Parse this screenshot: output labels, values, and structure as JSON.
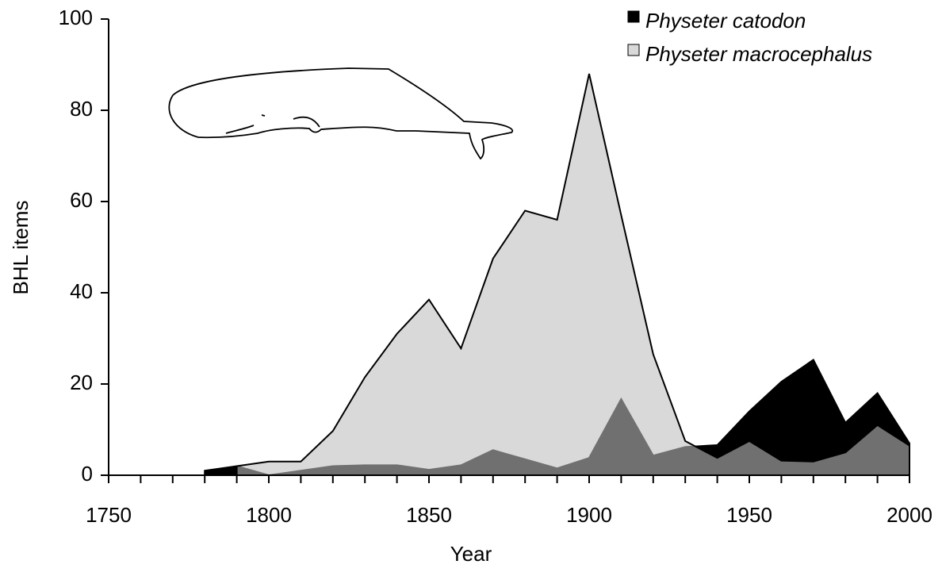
{
  "chart_data": {
    "type": "area",
    "xlabel": "Year",
    "ylabel": "BHL items",
    "x": [
      1780,
      1790,
      1800,
      1810,
      1820,
      1830,
      1840,
      1850,
      1860,
      1870,
      1880,
      1890,
      1900,
      1910,
      1920,
      1930,
      1940,
      1950,
      1960,
      1970,
      1980,
      1990,
      2000
    ],
    "series": [
      {
        "name": "Physeter catodon",
        "color": "#000000",
        "values": [
          1,
          2,
          0,
          1,
          2,
          2.2,
          2.2,
          1.2,
          2.2,
          5.5,
          3.5,
          1.5,
          3.8,
          16.7,
          4.3,
          6.2,
          6.6,
          14,
          20.5,
          25.3,
          11.5,
          18,
          7
        ]
      },
      {
        "name": "Physeter macrocephalus",
        "color": "#bfbfbf",
        "values": [
          null,
          2,
          3,
          3,
          9.7,
          21.5,
          31,
          38.5,
          27.8,
          47.5,
          58,
          56,
          88,
          57,
          26.5,
          7.5,
          3.8,
          7.5,
          3.2,
          3,
          5,
          11,
          6.5
        ]
      }
    ],
    "xlim": [
      1750,
      2000
    ],
    "xticks": [
      1750,
      1800,
      1850,
      1900,
      1950,
      2000
    ],
    "ylim": [
      0,
      100
    ],
    "yticks": [
      0,
      20,
      40,
      60,
      80,
      100
    ],
    "legend": "top-right"
  }
}
